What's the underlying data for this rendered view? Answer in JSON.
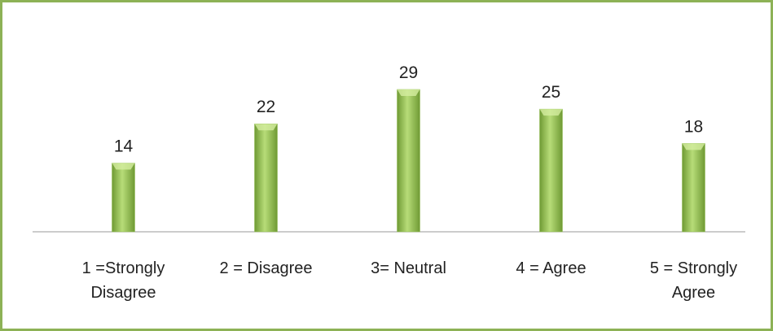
{
  "chart_data": {
    "type": "bar",
    "categories": [
      "1  =Strongly Disagree",
      "2 = Disagree",
      "3= Neutral",
      "4 = Agree",
      "5 = Strongly Agree"
    ],
    "values": [
      14,
      22,
      29,
      25,
      18
    ],
    "color": "#8fbc4f"
  }
}
